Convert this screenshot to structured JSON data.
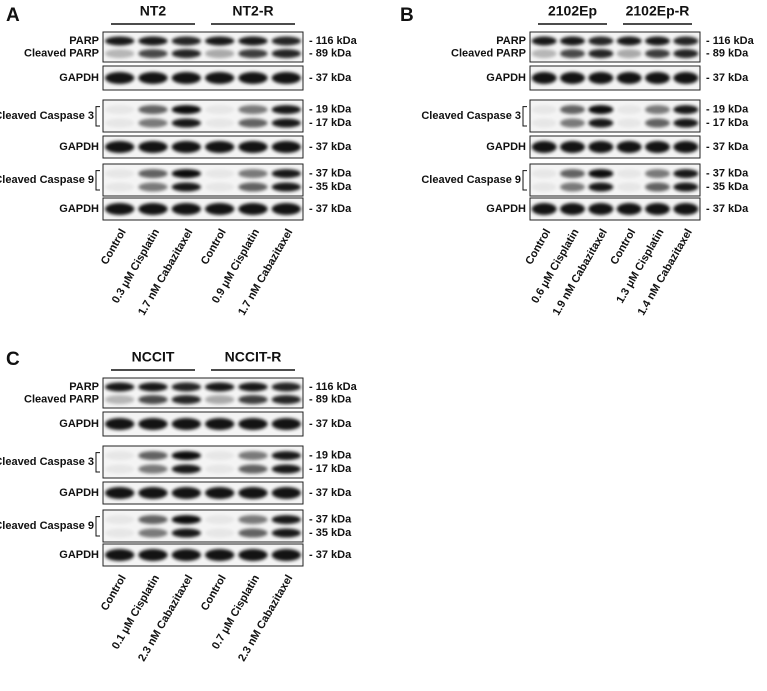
{
  "panels": [
    {
      "letter": "A",
      "groups": [
        "NT2",
        "NT2-R"
      ],
      "blots": [
        {
          "labels": [
            "PARP",
            "Cleaved PARP"
          ],
          "markers": [
            "- 116 kDa",
            "- 89 kDa"
          ]
        },
        {
          "labels": [
            "GAPDH"
          ],
          "markers": [
            "- 37 kDa"
          ]
        },
        {
          "labels": [
            "Cleaved Caspase 3"
          ],
          "markers": [
            "- 19 kDa",
            "- 17 kDa"
          ]
        },
        {
          "labels": [
            "GAPDH"
          ],
          "markers": [
            "- 37 kDa"
          ]
        },
        {
          "labels": [
            "Cleaved Caspase 9"
          ],
          "markers": [
            "- 37 kDa",
            "- 35 kDa"
          ]
        },
        {
          "labels": [
            "GAPDH"
          ],
          "markers": [
            "- 37 kDa"
          ]
        }
      ],
      "lanes": [
        "Control",
        "0.3 μM Cisplatin",
        "1.7 nM Cabazitaxel",
        "Control",
        "0.9 μM Cisplatin",
        "1.7 nM Cabazitaxel"
      ]
    },
    {
      "letter": "B",
      "groups": [
        "2102Ep",
        "2102Ep-R"
      ],
      "blots": [
        {
          "labels": [
            "PARP",
            "Cleaved PARP"
          ],
          "markers": [
            "- 116 kDa",
            "- 89 kDa"
          ]
        },
        {
          "labels": [
            "GAPDH"
          ],
          "markers": [
            "- 37 kDa"
          ]
        },
        {
          "labels": [
            "Cleaved Caspase 3"
          ],
          "markers": [
            "- 19 kDa",
            "- 17 kDa"
          ]
        },
        {
          "labels": [
            "GAPDH"
          ],
          "markers": [
            "- 37 kDa"
          ]
        },
        {
          "labels": [
            "Cleaved Caspase 9"
          ],
          "markers": [
            "- 37 kDa",
            "- 35 kDa"
          ]
        },
        {
          "labels": [
            "GAPDH"
          ],
          "markers": [
            "- 37 kDa"
          ]
        }
      ],
      "lanes": [
        "Control",
        "0.6 μM Cisplatin",
        "1.9 nM Cabazitaxel",
        "Control",
        "1.3 μM Cisplatin",
        "1.4 nM Cabazitaxel"
      ]
    },
    {
      "letter": "C",
      "groups": [
        "NCCIT",
        "NCCIT-R"
      ],
      "blots": [
        {
          "labels": [
            "PARP",
            "Cleaved PARP"
          ],
          "markers": [
            "- 116 kDa",
            "- 89 kDa"
          ]
        },
        {
          "labels": [
            "GAPDH"
          ],
          "markers": [
            "- 37 kDa"
          ]
        },
        {
          "labels": [
            "Cleaved Caspase 3"
          ],
          "markers": [
            "- 19 kDa",
            "- 17 kDa"
          ]
        },
        {
          "labels": [
            "GAPDH"
          ],
          "markers": [
            "- 37 kDa"
          ]
        },
        {
          "labels": [
            "Cleaved Caspase 9"
          ],
          "markers": [
            "- 37 kDa",
            "- 35 kDa"
          ]
        },
        {
          "labels": [
            "GAPDH"
          ],
          "markers": [
            "- 37 kDa"
          ]
        }
      ],
      "lanes": [
        "Control",
        "0.1 μM Cisplatin",
        "2.3 nM Cabazitaxel",
        "Control",
        "0.7 μM Cisplatin",
        "2.3 nM Cabazitaxel"
      ]
    }
  ]
}
